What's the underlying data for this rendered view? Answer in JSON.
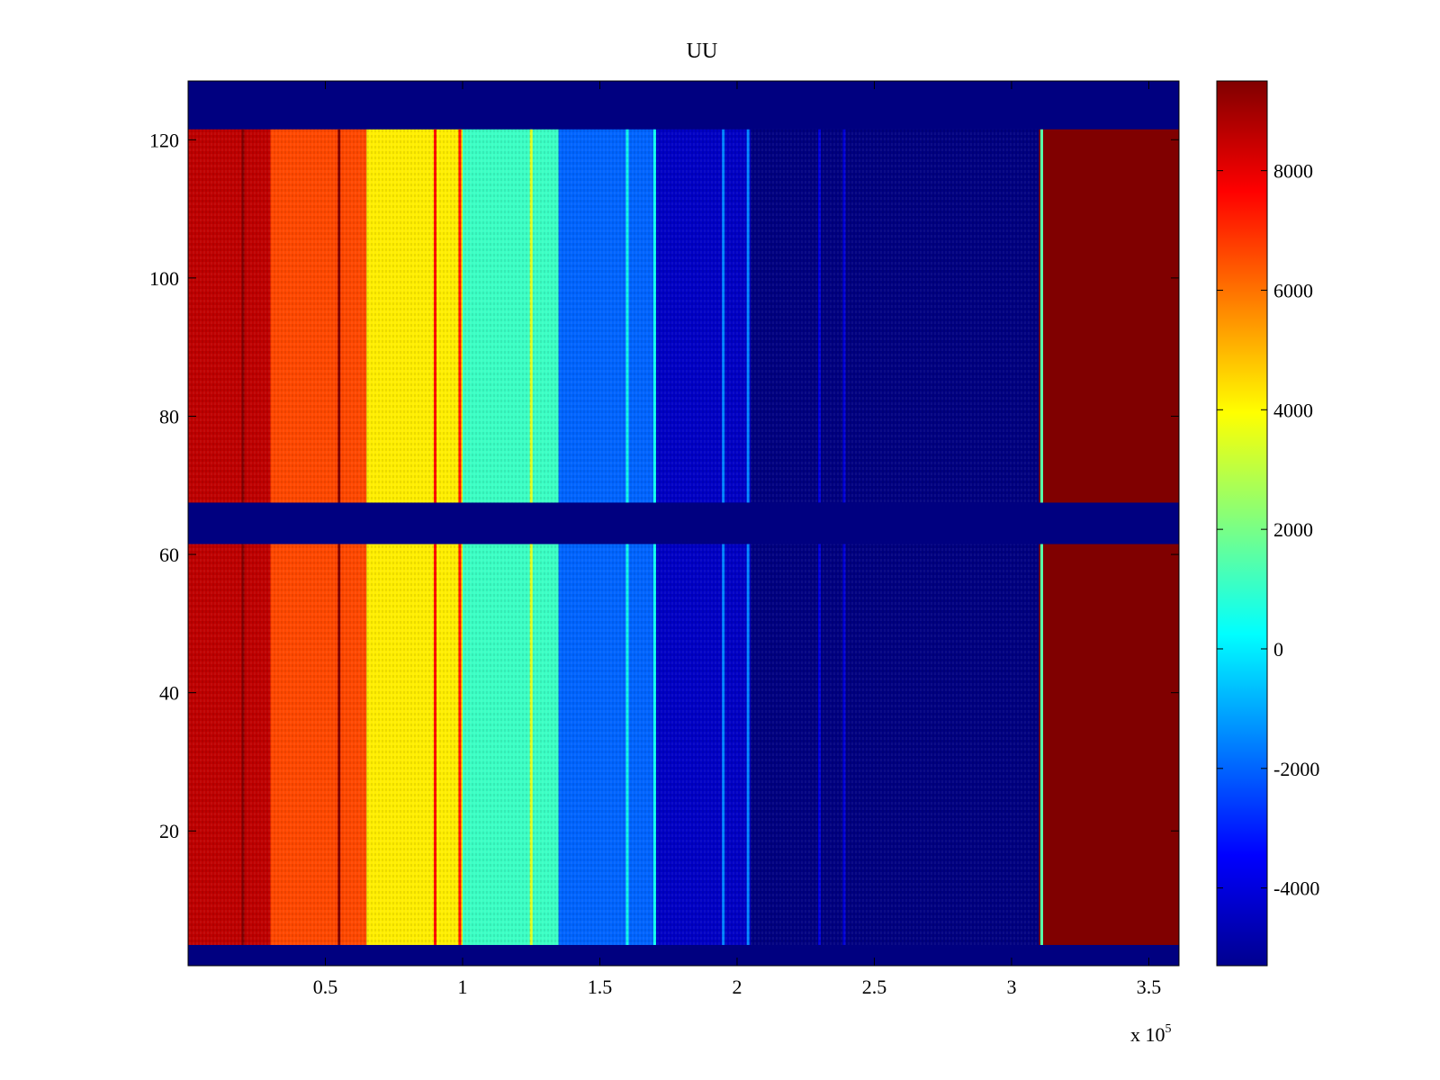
{
  "chart_data": {
    "type": "heatmap",
    "title": "UU",
    "xlabel": "",
    "ylabel": "",
    "x_exponent_label": {
      "base": "x 10",
      "power": "5"
    },
    "xlim": [
      0,
      3.61
    ],
    "ylim": [
      0.5,
      128.5
    ],
    "x_ticks": [
      0.5,
      1,
      1.5,
      2,
      2.5,
      3,
      3.5
    ],
    "x_tick_labels": [
      "0.5",
      "1",
      "1.5",
      "2",
      "2.5",
      "3",
      "3.5"
    ],
    "y_ticks": [
      20,
      40,
      60,
      80,
      100,
      120
    ],
    "y_tick_labels": [
      "20",
      "40",
      "60",
      "80",
      "100",
      "120"
    ],
    "colormap": "jet",
    "clim": [
      -5300,
      9500
    ],
    "colorbar_ticks": [
      8000,
      6000,
      4000,
      2000,
      0,
      -2000,
      -4000
    ],
    "colorbar_tick_labels": [
      "8000",
      "6000",
      "4000",
      "2000",
      "0",
      "-2000",
      "-4000"
    ],
    "row_bands": [
      {
        "y_from": 0.5,
        "y_to": 3.5,
        "filled": false
      },
      {
        "y_from": 3.5,
        "y_to": 61.5,
        "filled": true
      },
      {
        "y_from": 61.5,
        "y_to": 67.5,
        "filled": false
      },
      {
        "y_from": 67.5,
        "y_to": 121.5,
        "filled": true
      },
      {
        "y_from": 121.5,
        "y_to": 128.5,
        "filled": false
      }
    ],
    "empty_value": -5300,
    "column_profile": [
      {
        "x_from": 0.0,
        "x_to": 0.3,
        "value": 8600
      },
      {
        "x_from": 0.3,
        "x_to": 0.65,
        "value": 6600
      },
      {
        "x_from": 0.65,
        "x_to": 1.0,
        "value": 4200
      },
      {
        "x_from": 1.0,
        "x_to": 1.35,
        "value": 1100
      },
      {
        "x_from": 1.35,
        "x_to": 1.7,
        "value": -2000
      },
      {
        "x_from": 1.7,
        "x_to": 2.05,
        "value": -4300
      },
      {
        "x_from": 2.05,
        "x_to": 3.1,
        "value": -5300
      },
      {
        "x_from": 3.1,
        "x_to": 3.61,
        "value": 9500
      }
    ],
    "streaks": [
      {
        "x": 0.2,
        "value": 9500
      },
      {
        "x": 0.55,
        "value": 9500
      },
      {
        "x": 0.9,
        "value": 7500
      },
      {
        "x": 0.99,
        "value": 7500
      },
      {
        "x": 1.25,
        "value": 3500
      },
      {
        "x": 1.6,
        "value": 500
      },
      {
        "x": 1.7,
        "value": 500
      },
      {
        "x": 1.95,
        "value": -1500
      },
      {
        "x": 2.04,
        "value": -1500
      },
      {
        "x": 2.3,
        "value": -4000
      },
      {
        "x": 2.39,
        "value": -4000
      },
      {
        "x": 3.11,
        "value": 1500
      }
    ]
  }
}
